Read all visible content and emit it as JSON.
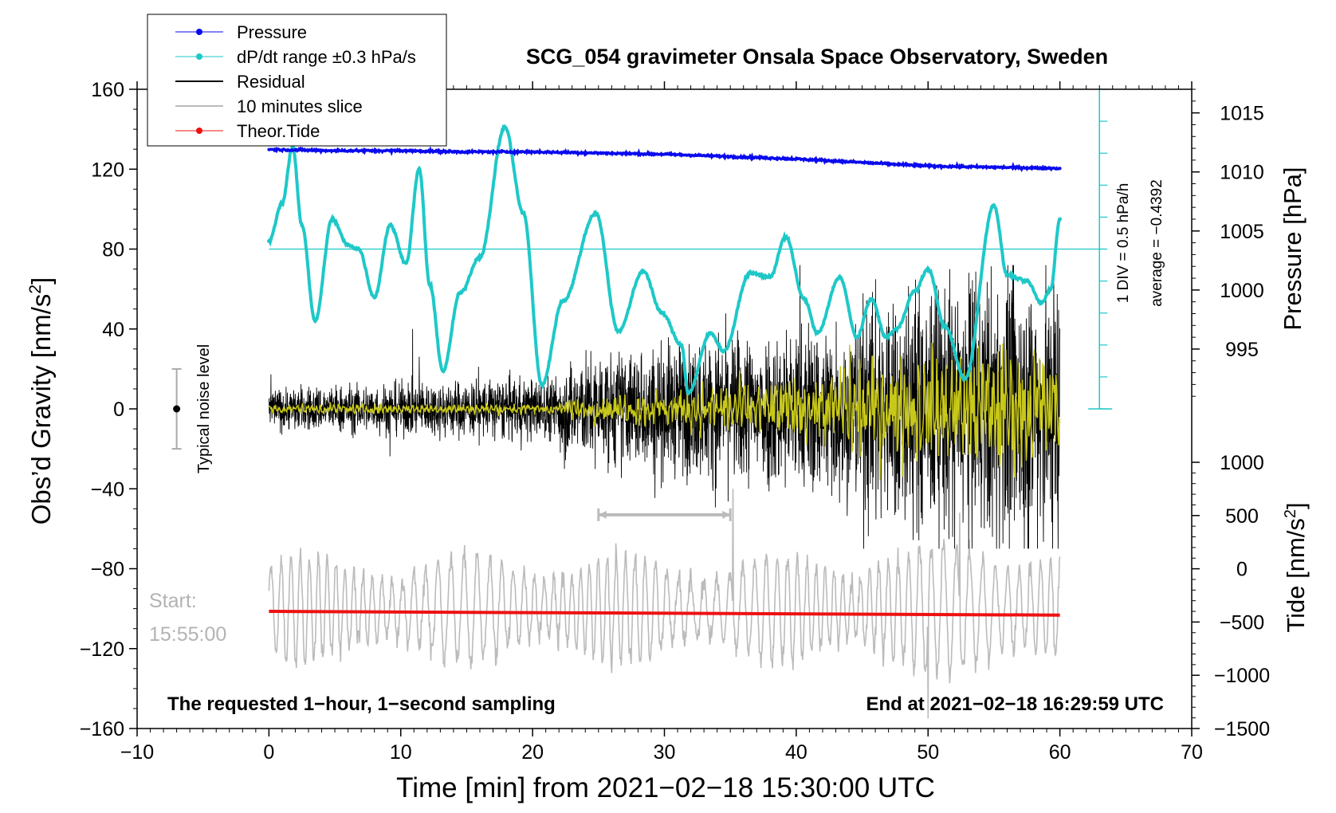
{
  "chart_data": {
    "type": "line",
    "title": "SCG_054 gravimeter Onsala Space Observatory, Sweden",
    "xlabel": "Time [min] from 2021−02−18 15:30:00 UTC",
    "ylabel_left_main": "Obs’d Gravity [nm/s",
    "ylabel_left_sup": "2",
    "ylabel_left_tail": "]",
    "ylabel_right_pressure": "Pressure [hPa]",
    "ylabel_right_tide_main": "Tide [nm/s",
    "ylabel_right_tide_sup": "2",
    "ylabel_right_tide_tail": "]",
    "xlim": [
      -10,
      70
    ],
    "ylim_gravity": [
      -160,
      160
    ],
    "ylim_pressure": [
      990,
      1017
    ],
    "ylim_tide": [
      -1500,
      1000
    ],
    "x_ticks": [
      -10,
      0,
      10,
      20,
      30,
      40,
      50,
      60,
      70
    ],
    "x_tick_labels": [
      "−10",
      "0",
      "10",
      "20",
      "30",
      "40",
      "50",
      "60",
      "70"
    ],
    "gravity_ticks": [
      160,
      120,
      80,
      40,
      0,
      -40,
      -80,
      -120,
      -160
    ],
    "gravity_tick_labels": [
      "160",
      "120",
      "80",
      "40",
      "0",
      "−40",
      "−80",
      "−120",
      "−160"
    ],
    "pressure_ticks": [
      1015,
      1010,
      1005,
      1000,
      995
    ],
    "pressure_tick_labels": [
      "1015",
      "1010",
      "1005",
      "1000",
      "995"
    ],
    "tide_ticks": [
      1000,
      500,
      0,
      -500,
      -1000,
      -1500
    ],
    "tide_tick_labels": [
      "1000",
      "500",
      "0",
      "−500",
      "−1000",
      "−1500"
    ],
    "legend": {
      "position": "top-left",
      "entries": [
        {
          "label": "Pressure",
          "color": "#0a0aee",
          "marker": true
        },
        {
          "label": "dP/dt range ±0.3 hPa/s",
          "color": "#1ec8c8",
          "marker": true
        },
        {
          "label": "Residual",
          "color": "#000000",
          "marker": false
        },
        {
          "label": "10 minutes slice",
          "color": "#bbbbbb",
          "marker": false
        },
        {
          "label": "Theor.Tide",
          "color": "#ee1111",
          "marker": true
        }
      ]
    },
    "annotations": {
      "noise_label": "Typical noise level",
      "noise_range": [
        -20,
        20
      ],
      "scale_div": "1 DIV = 0.5 hPa/h",
      "scale_avg": "average = −0.4392",
      "start_label": "Start:",
      "start_time": "15:55:00",
      "footer_left": "The requested 1−hour, 1−second sampling",
      "footer_right": "End at 2021−02−18 16:29:59 UTC",
      "slice_range_min": [
        25,
        35
      ]
    },
    "series": [
      {
        "name": "Pressure",
        "axis": "pressure",
        "color": "#0a0aee",
        "x": [
          0,
          5,
          10,
          15,
          20,
          25,
          30,
          35,
          40,
          45,
          50,
          55,
          60
        ],
        "values": [
          1011.9,
          1011.8,
          1011.8,
          1011.7,
          1011.7,
          1011.6,
          1011.5,
          1011.3,
          1011.1,
          1010.8,
          1010.5,
          1010.4,
          1010.3
        ]
      },
      {
        "name": "dP/dt",
        "axis": "gravity",
        "color": "#1ec8c8",
        "x": [
          0,
          1,
          1.8,
          2.5,
          3.5,
          4.8,
          6,
          6.8,
          8,
          9.2,
          10.4,
          11.4,
          12.2,
          13.2,
          14.5,
          16,
          17.9,
          19.3,
          20.7,
          22.3,
          24.8,
          26.5,
          28.4,
          29.8,
          31.3,
          31.8,
          33.5,
          34.5,
          36.5,
          38,
          39.2,
          40.6,
          41.6,
          43.3,
          44.6,
          45.7,
          46.8,
          47.6,
          49,
          50,
          51.3,
          52.8,
          55,
          56,
          57.5,
          58.6,
          59.3,
          60
        ],
        "values": [
          84,
          103,
          131,
          92,
          44,
          95,
          82,
          80,
          56,
          92,
          73,
          120,
          62,
          19,
          58,
          76,
          141,
          98,
          12,
          54,
          98,
          39,
          69,
          48,
          32,
          8,
          38,
          29,
          68,
          66,
          86,
          55,
          38,
          66,
          36,
          55,
          36,
          40,
          59,
          70,
          41,
          15,
          102,
          67,
          64,
          53,
          60,
          95
        ]
      },
      {
        "name": "Residual",
        "axis": "gravity",
        "color": "#000000",
        "kind": "noise",
        "x_range": [
          0,
          60
        ],
        "envelope_growth_min": 22
      },
      {
        "name": "Residual (smoothed)",
        "axis": "gravity",
        "color": "#c8c81a",
        "kind": "noise",
        "x_range": [
          0,
          60
        ]
      },
      {
        "name": "10 minutes slice",
        "axis": "gravity",
        "color": "#bbbbbb",
        "kind": "oscillation",
        "x_range": [
          0,
          60
        ]
      },
      {
        "name": "Theor.Tide",
        "axis": "tide",
        "color": "#ee1111",
        "x": [
          0,
          60
        ],
        "values": [
          -400,
          -435
        ]
      }
    ]
  }
}
